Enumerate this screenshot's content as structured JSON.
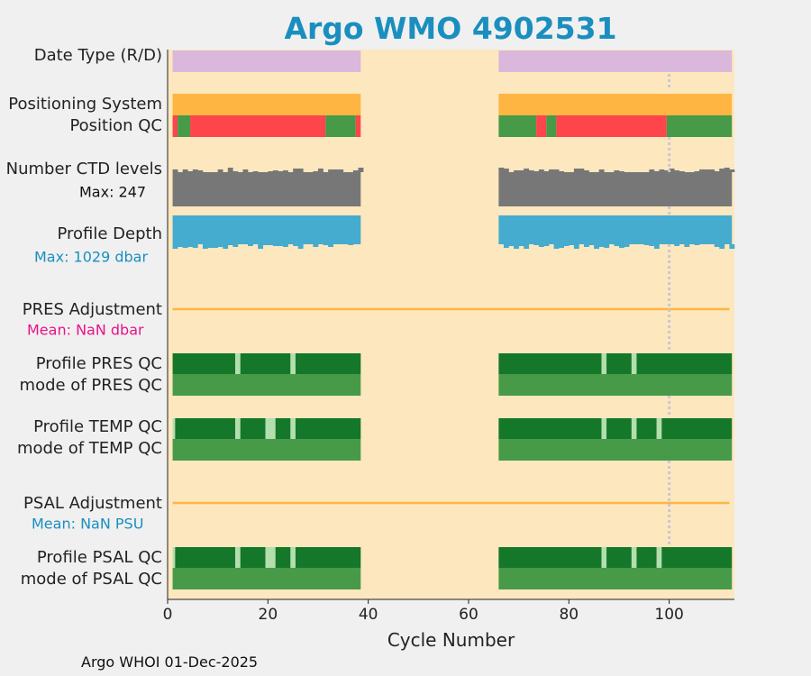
{
  "title": "Argo WMO 4902531",
  "footer": "Argo WHOI 01-Dec-2025",
  "colors": {
    "background": "#fde7be",
    "title": "#1a8fbf",
    "datetype": "#d9b8db",
    "positioning": "#feb542",
    "qc_bad": "#fd454b",
    "qc_good": "#479a48",
    "dark_green": "#157729",
    "light_green": "#b2dfae",
    "ctd": "#777777",
    "depth": "#45abcf",
    "adjustment": "#feb542",
    "marker": "#c8c8d2",
    "pres_mean": "#e8138c",
    "psal_mean": "#1a8fbf"
  },
  "chart_data": {
    "type": "timeline",
    "xlabel": "Cycle Number",
    "xlim": [
      0,
      113
    ],
    "xticks": [
      0,
      20,
      40,
      60,
      80,
      100
    ],
    "marker_cycle": 100,
    "rows": [
      {
        "name": "datetype",
        "label": "Date Type (R/D)",
        "segments": [
          [
            1,
            38.5,
            "datetype"
          ],
          [
            66,
            112.5,
            "datetype"
          ]
        ]
      },
      {
        "name": "positioning-system",
        "label": "Positioning System",
        "segments": [
          [
            1,
            38.5,
            "positioning"
          ],
          [
            66,
            112.5,
            "positioning"
          ]
        ]
      },
      {
        "name": "position-qc",
        "label": "Position QC",
        "segments": [
          [
            1,
            2,
            "qc_bad"
          ],
          [
            2,
            4.5,
            "qc_good"
          ],
          [
            4.5,
            31.5,
            "qc_bad"
          ],
          [
            31.5,
            37.5,
            "qc_good"
          ],
          [
            37.5,
            38.5,
            "qc_bad"
          ],
          [
            66,
            73.5,
            "qc_good"
          ],
          [
            73.5,
            75.5,
            "qc_bad"
          ],
          [
            75.5,
            77.5,
            "qc_good"
          ],
          [
            77.5,
            99.5,
            "qc_bad"
          ],
          [
            99.5,
            112.5,
            "qc_good"
          ]
        ]
      },
      {
        "name": "ctd-levels",
        "label": "Number CTD levels",
        "annotation": "Max: 247",
        "segments": [
          [
            1,
            38.5,
            "ctd"
          ],
          [
            66,
            112.5,
            "ctd"
          ]
        ]
      },
      {
        "name": "profile-depth",
        "label": "Profile Depth",
        "annotation": "Max: 1029 dbar",
        "segments": [
          [
            1,
            38.5,
            "depth"
          ],
          [
            66,
            112.5,
            "depth"
          ]
        ]
      },
      {
        "name": "pres-adjustment",
        "label": "PRES Adjustment",
        "annotation": "Mean:  NaN dbar",
        "line": [
          1,
          112
        ]
      },
      {
        "name": "profile-pres-qc",
        "label": "Profile PRES QC",
        "segments": [
          [
            1,
            13.5,
            "dark_green"
          ],
          [
            13.5,
            14.5,
            "light_green"
          ],
          [
            14.5,
            24.5,
            "dark_green"
          ],
          [
            24.5,
            25.5,
            "light_green"
          ],
          [
            25.5,
            38.5,
            "dark_green"
          ],
          [
            66,
            86.5,
            "dark_green"
          ],
          [
            86.5,
            87.5,
            "light_green"
          ],
          [
            87.5,
            92.5,
            "dark_green"
          ],
          [
            92.5,
            93.5,
            "light_green"
          ],
          [
            93.5,
            112.5,
            "dark_green"
          ]
        ]
      },
      {
        "name": "mode-pres-qc",
        "label": "mode of PRES QC",
        "segments": [
          [
            1,
            38.5,
            "qc_good"
          ],
          [
            66,
            112.5,
            "qc_good"
          ]
        ]
      },
      {
        "name": "profile-temp-qc",
        "label": "Profile TEMP QC",
        "segments": [
          [
            1,
            1.5,
            "light_green"
          ],
          [
            1.5,
            13.5,
            "dark_green"
          ],
          [
            13.5,
            14.5,
            "light_green"
          ],
          [
            14.5,
            19.5,
            "dark_green"
          ],
          [
            19.5,
            21.5,
            "light_green"
          ],
          [
            21.5,
            24.5,
            "dark_green"
          ],
          [
            24.5,
            25.5,
            "light_green"
          ],
          [
            25.5,
            38.5,
            "dark_green"
          ],
          [
            66,
            86.5,
            "dark_green"
          ],
          [
            86.5,
            87.5,
            "light_green"
          ],
          [
            87.5,
            92.5,
            "dark_green"
          ],
          [
            92.5,
            93.5,
            "light_green"
          ],
          [
            93.5,
            97.5,
            "dark_green"
          ],
          [
            97.5,
            98.5,
            "light_green"
          ],
          [
            98.5,
            112.5,
            "dark_green"
          ]
        ]
      },
      {
        "name": "mode-temp-qc",
        "label": "mode of TEMP QC",
        "segments": [
          [
            1,
            38.5,
            "qc_good"
          ],
          [
            66,
            112.5,
            "qc_good"
          ]
        ]
      },
      {
        "name": "psal-adjustment",
        "label": "PSAL Adjustment",
        "annotation": "Mean:  NaN PSU",
        "line": [
          1,
          112
        ]
      },
      {
        "name": "profile-psal-qc",
        "label": "Profile PSAL QC",
        "segments": [
          [
            1,
            1.5,
            "light_green"
          ],
          [
            1.5,
            13.5,
            "dark_green"
          ],
          [
            13.5,
            14.5,
            "light_green"
          ],
          [
            14.5,
            19.5,
            "dark_green"
          ],
          [
            19.5,
            21.5,
            "light_green"
          ],
          [
            21.5,
            24.5,
            "dark_green"
          ],
          [
            24.5,
            25.5,
            "light_green"
          ],
          [
            25.5,
            38.5,
            "dark_green"
          ],
          [
            66,
            86.5,
            "dark_green"
          ],
          [
            86.5,
            87.5,
            "light_green"
          ],
          [
            87.5,
            92.5,
            "dark_green"
          ],
          [
            92.5,
            93.5,
            "light_green"
          ],
          [
            93.5,
            97.5,
            "dark_green"
          ],
          [
            97.5,
            98.5,
            "light_green"
          ],
          [
            98.5,
            112.5,
            "dark_green"
          ]
        ]
      },
      {
        "name": "mode-psal-qc",
        "label": "mode of PSAL QC",
        "segments": [
          [
            1,
            38.5,
            "qc_good"
          ],
          [
            66,
            112.5,
            "qc_good"
          ]
        ]
      }
    ]
  }
}
